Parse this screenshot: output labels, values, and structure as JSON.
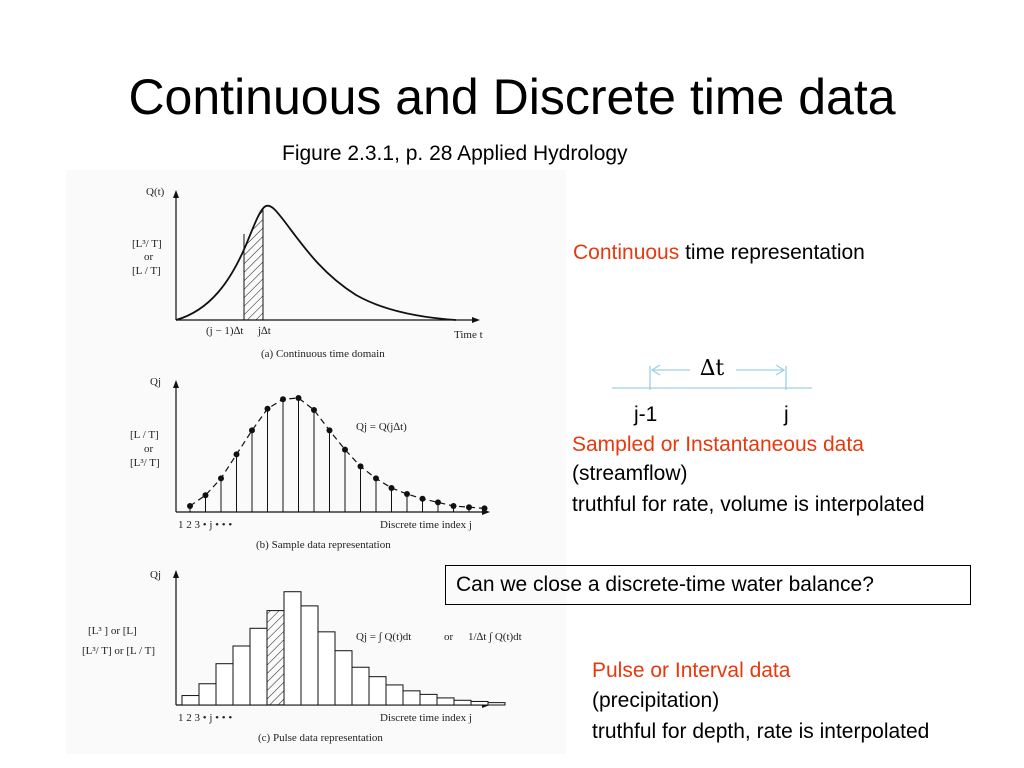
{
  "slide": {
    "title": "Continuous and Discrete time data",
    "subtitle": "Figure 2.3.1, p. 28 Applied Hydrology"
  },
  "continuous": {
    "highlight": "Continuous",
    "rest": " time representation"
  },
  "interval_diagram": {
    "delta": "∆t",
    "left": "j-1",
    "right": "j"
  },
  "sampled": {
    "heading": "Sampled or Instantaneous data",
    "example": "(streamflow)",
    "note": "truthful for rate, volume is interpolated"
  },
  "question": "Can we close a discrete-time water balance?",
  "pulse": {
    "heading": "Pulse or Interval data",
    "example": "(precipitation)",
    "note": "truthful for depth, rate is interpolated"
  },
  "figure": {
    "panel_a": {
      "y_axis_label": "Q(t)",
      "units_1": "[L³/ T]",
      "units_or": "or",
      "units_2": "[L / T]",
      "x_tick_1": "(j − 1)∆t",
      "x_tick_2": "j∆t",
      "x_axis_label": "Time t",
      "caption": "(a)  Continuous time domain"
    },
    "panel_b": {
      "y_axis_label": "Qj",
      "units_1": "[L / T]",
      "units_or": "or",
      "units_2": "[L³/ T]",
      "equation": "Qj = Q(j∆t)",
      "ticks": "1   2   3   •   j   •   •   •",
      "x_axis_label": "Discrete time index j",
      "caption": "(b)  Sample data representation",
      "values": [
        0.05,
        0.14,
        0.28,
        0.48,
        0.68,
        0.86,
        0.94,
        0.95,
        0.85,
        0.68,
        0.52,
        0.38,
        0.28,
        0.2,
        0.15,
        0.11,
        0.08,
        0.05,
        0.04,
        0.03
      ]
    },
    "panel_c": {
      "y_axis_label": "Qj",
      "units_1": "[L³ ]  or  [L]",
      "units_2": "[L³/ T] or [L / T]",
      "equation_1": "Qj  =  ∫ Q(t)dt",
      "equation_or": "or",
      "equation_2": "1/∆t ∫ Q(t)dt",
      "ticks": "1   2   3   •   j   •   •   •",
      "x_axis_label": "Discrete time index j",
      "caption": "(c)  Pulse data representation",
      "values": [
        0.08,
        0.18,
        0.35,
        0.5,
        0.65,
        0.8,
        0.96,
        0.84,
        0.62,
        0.46,
        0.32,
        0.24,
        0.17,
        0.12,
        0.09,
        0.06,
        0.04,
        0.03,
        0.02
      ]
    }
  }
}
